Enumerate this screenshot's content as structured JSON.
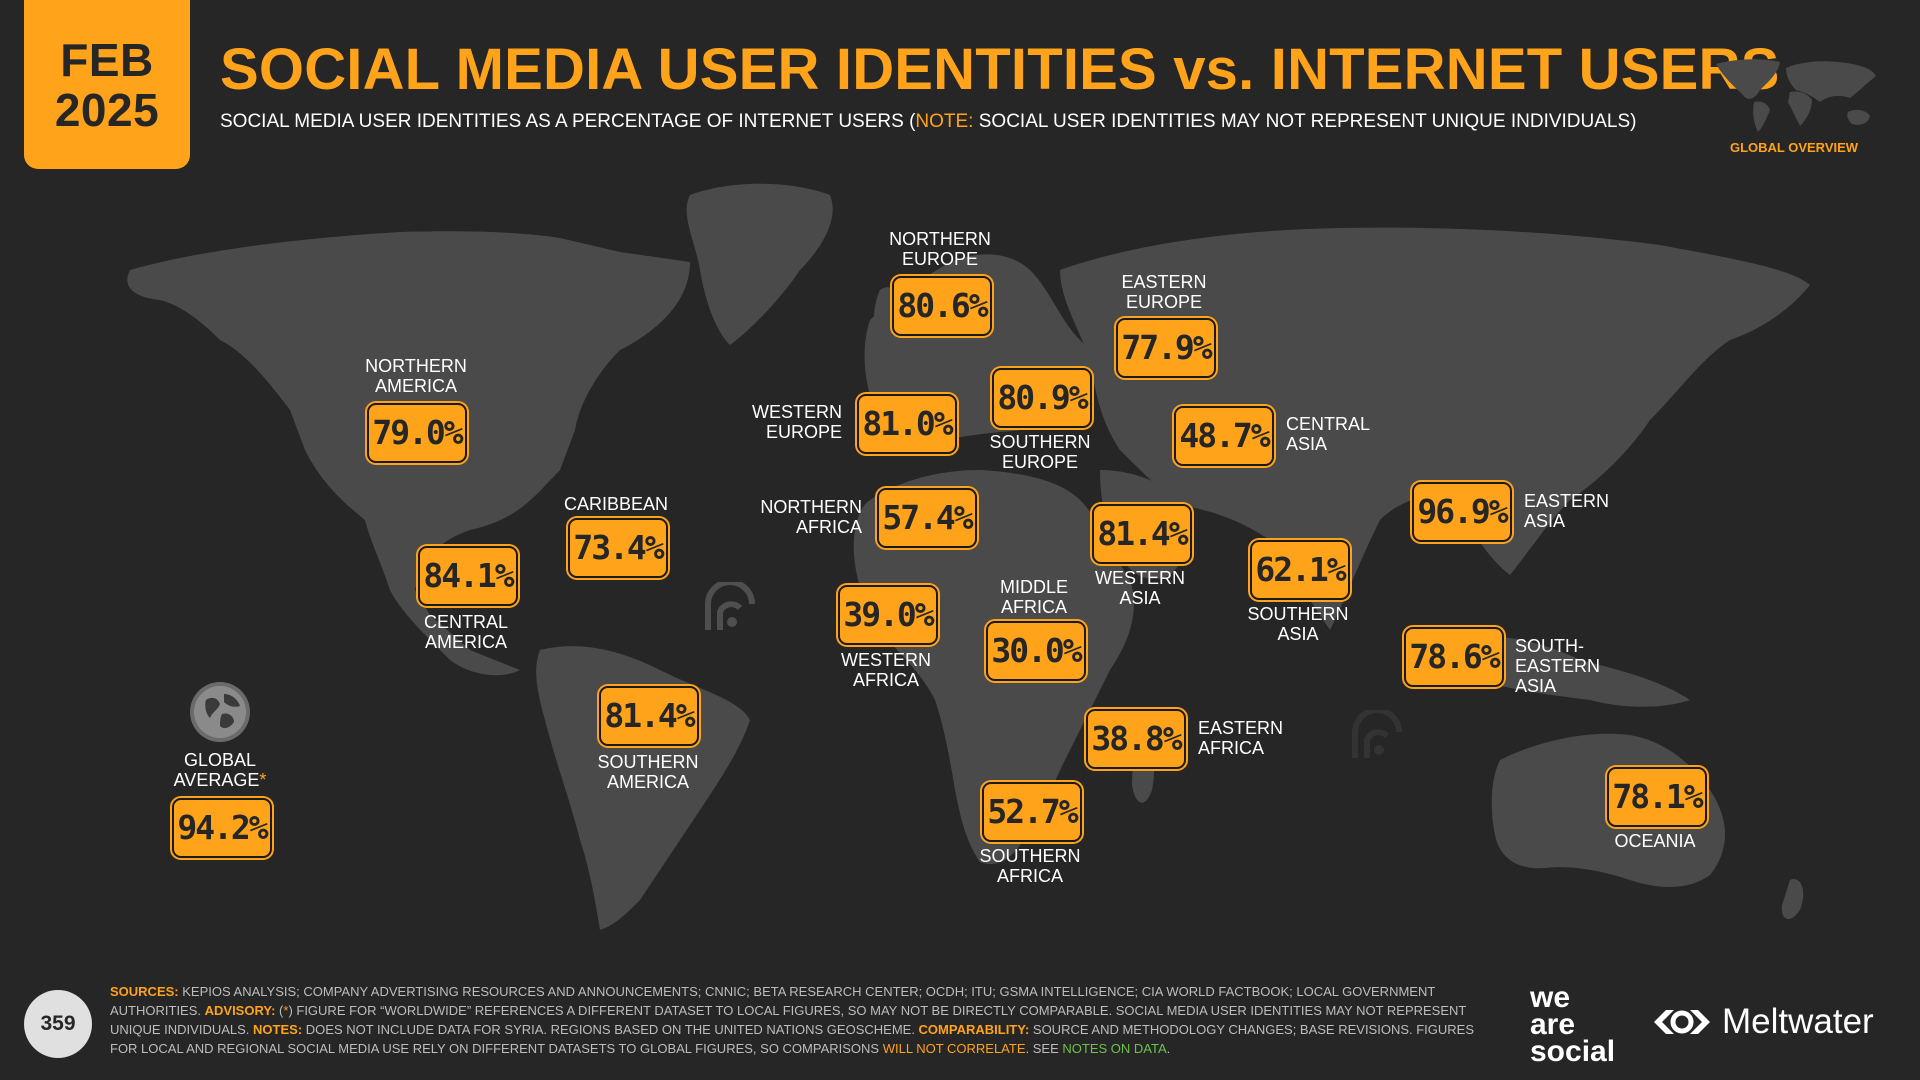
{
  "header": {
    "month": "FEB",
    "year": "2025",
    "title": "SOCIAL MEDIA USER IDENTITIES vs. INTERNET USERS",
    "subtitle_main": "SOCIAL MEDIA USER IDENTITIES AS A PERCENTAGE OF INTERNET USERS (",
    "subtitle_note_key": "NOTE:",
    "subtitle_note_text": " SOCIAL USER IDENTITIES MAY NOT REPRESENT UNIQUE INDIVIDUALS)",
    "mini_map_label": "GLOBAL OVERVIEW"
  },
  "regions": {
    "northern_america": {
      "label_1": "NORTHERN",
      "label_2": "AMERICA",
      "value": "79.0%"
    },
    "central_america": {
      "label_1": "CENTRAL",
      "label_2": "AMERICA",
      "value": "84.1%"
    },
    "caribbean": {
      "label_1": "CARIBBEAN",
      "value": "73.4%"
    },
    "southern_america": {
      "label_1": "SOUTHERN",
      "label_2": "AMERICA",
      "value": "81.4%"
    },
    "northern_europe": {
      "label_1": "NORTHERN",
      "label_2": "EUROPE",
      "value": "80.6%"
    },
    "western_europe": {
      "label_1": "WESTERN",
      "label_2": "EUROPE",
      "value": "81.0%"
    },
    "southern_europe": {
      "label_1": "SOUTHERN",
      "label_2": "EUROPE",
      "value": "80.9%"
    },
    "eastern_europe": {
      "label_1": "EASTERN",
      "label_2": "EUROPE",
      "value": "77.9%"
    },
    "northern_africa": {
      "label_1": "NORTHERN",
      "label_2": "AFRICA",
      "value": "57.4%"
    },
    "western_africa": {
      "label_1": "WESTERN",
      "label_2": "AFRICA",
      "value": "39.0%"
    },
    "middle_africa": {
      "label_1": "MIDDLE",
      "label_2": "AFRICA",
      "value": "30.0%"
    },
    "eastern_africa": {
      "label_1": "EASTERN",
      "label_2": "AFRICA",
      "value": "38.8%"
    },
    "southern_africa": {
      "label_1": "SOUTHERN",
      "label_2": "AFRICA",
      "value": "52.7%"
    },
    "western_asia": {
      "label_1": "WESTERN",
      "label_2": "ASIA",
      "value": "81.4%"
    },
    "central_asia": {
      "label_1": "CENTRAL",
      "label_2": "ASIA",
      "value": "48.7%"
    },
    "southern_asia": {
      "label_1": "SOUTHERN",
      "label_2": "ASIA",
      "value": "62.1%"
    },
    "eastern_asia": {
      "label_1": "EASTERN",
      "label_2": "ASIA",
      "value": "96.9%"
    },
    "south_eastern_asia": {
      "label_1": "SOUTH-EASTERN",
      "label_2": "ASIA",
      "value": "78.6%"
    },
    "oceania": {
      "label_1": "OCEANIA",
      "value": "78.1%"
    }
  },
  "global": {
    "label_1": "GLOBAL",
    "label_2": "AVERAGE",
    "asterisk": "*",
    "value": "94.2%"
  },
  "footer": {
    "page_number": "359",
    "sources_key": "SOURCES:",
    "sources_text": " KEPIOS ANALYSIS; COMPANY ADVERTISING RESOURCES AND ANNOUNCEMENTS; CNNIC; BETA RESEARCH CENTER; OCDH; ITU; GSMA INTELLIGENCE; CIA WORLD FACTBOOK; LOCAL GOVERNMENT AUTHORITIES. ",
    "advisory_key": "ADVISORY:",
    "advisory_open": " (",
    "advisory_star": "*",
    "advisory_text": ") FIGURE FOR “WORLDWIDE” REFERENCES A DIFFERENT DATASET TO LOCAL FIGURES, SO MAY NOT BE DIRECTLY COMPARABLE. SOCIAL MEDIA USER IDENTITIES MAY NOT REPRESENT UNIQUE INDIVIDUALS. ",
    "notes_key": "NOTES:",
    "notes_text": " DOES NOT INCLUDE DATA FOR SYRIA. REGIONS BASED ON THE UNITED NATIONS GEOSCHEME. ",
    "comparability_key": "COMPARABILITY:",
    "comparability_text": " SOURCE AND METHODOLOGY CHANGES; BASE REVISIONS. FIGURES FOR LOCAL AND REGIONAL SOCIAL MEDIA USE RELY ON DIFFERENT DATASETS TO GLOBAL FIGURES, SO COMPARISONS ",
    "will_not_correlate": "WILL NOT CORRELATE",
    "see_text": ". SEE ",
    "notes_on_data": "NOTES ON DATA",
    "end_text": ".",
    "brand_was_1": "we",
    "brand_was_2": "are",
    "brand_was_3": "social",
    "brand_mw": "Meltwater"
  },
  "colors": {
    "accent": "#ffa31a",
    "background": "#262626",
    "land": "#4a4a4a",
    "green_link": "#6cc24a"
  },
  "icons": [
    "globe-icon",
    "world-map",
    "data-watermark-icon",
    "meltwater-logo-icon"
  ]
}
